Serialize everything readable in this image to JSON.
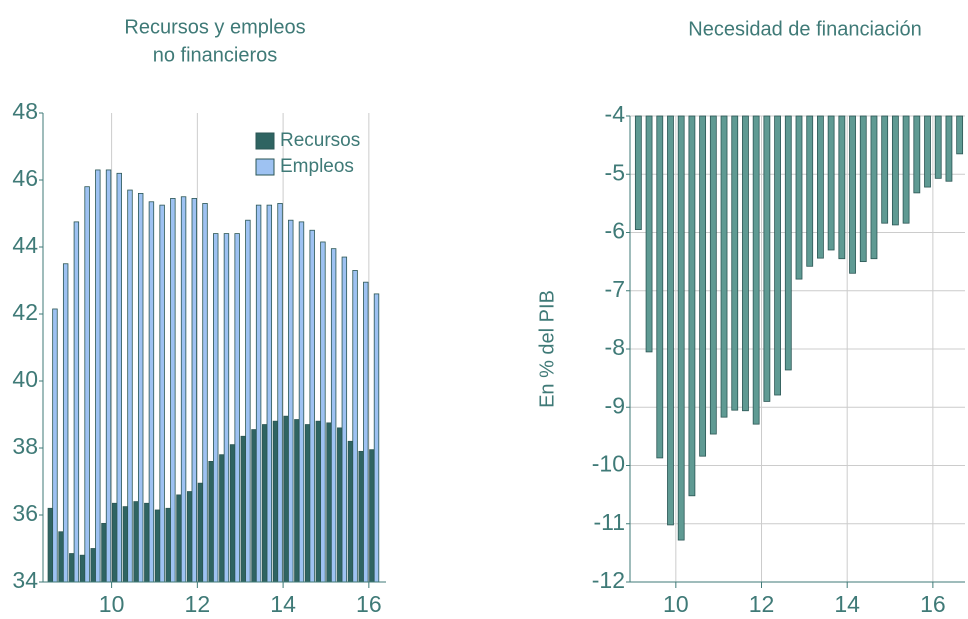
{
  "chart_data": [
    {
      "type": "bar",
      "title": [
        "Recursos y empleos",
        "no financieros"
      ],
      "x": [
        8.625,
        8.875,
        9.125,
        9.375,
        9.625,
        9.875,
        10.125,
        10.375,
        10.625,
        10.875,
        11.125,
        11.375,
        11.625,
        11.875,
        12.125,
        12.375,
        12.625,
        12.875,
        13.125,
        13.375,
        13.625,
        13.875,
        14.125,
        14.375,
        14.625,
        14.875,
        15.125,
        15.375,
        15.625,
        15.875,
        16.125
      ],
      "series": [
        {
          "name": "Recursos",
          "color": "#2f6462",
          "values": [
            36.2,
            35.5,
            34.85,
            34.8,
            35.0,
            35.75,
            36.35,
            36.25,
            36.4,
            36.35,
            36.15,
            36.2,
            36.6,
            36.7,
            36.95,
            37.6,
            37.8,
            38.1,
            38.35,
            38.55,
            38.7,
            38.8,
            38.95,
            38.85,
            38.7,
            38.8,
            38.75,
            38.6,
            38.2,
            37.9,
            37.95
          ]
        },
        {
          "name": "Empleos",
          "color": "#9ec2f2",
          "values": [
            42.15,
            43.5,
            44.75,
            45.8,
            46.3,
            46.3,
            46.2,
            45.7,
            45.6,
            45.35,
            45.25,
            45.45,
            45.5,
            45.45,
            45.3,
            44.4,
            44.4,
            44.4,
            44.8,
            45.25,
            45.25,
            45.3,
            44.8,
            44.75,
            44.5,
            44.15,
            43.95,
            43.7,
            43.3,
            42.95,
            42.6
          ]
        }
      ],
      "xlim": [
        8.4,
        16.4
      ],
      "xticks": [
        10,
        12,
        14,
        16
      ],
      "ylim": [
        34,
        48
      ],
      "yticks": [
        34,
        36,
        38,
        40,
        42,
        44,
        46,
        48
      ],
      "grid_x": true,
      "grid_y": false,
      "legend": "upper right"
    },
    {
      "type": "bar",
      "title": [
        "Necesidad de financiación"
      ],
      "ylabel": "En % del PIB",
      "x": [
        9.125,
        9.375,
        9.625,
        9.875,
        10.125,
        10.375,
        10.625,
        10.875,
        11.125,
        11.375,
        11.625,
        11.875,
        12.125,
        12.375,
        12.625,
        12.875,
        13.125,
        13.375,
        13.625,
        13.875,
        14.125,
        14.375,
        14.625,
        14.875,
        15.125,
        15.375,
        15.625,
        15.875,
        16.125,
        16.375,
        16.625
      ],
      "values": [
        -5.95,
        -8.05,
        -9.87,
        -11.02,
        -11.28,
        -10.52,
        -9.84,
        -9.46,
        -9.17,
        -9.05,
        -9.06,
        -9.29,
        -8.9,
        -8.79,
        -8.36,
        -6.8,
        -6.58,
        -6.44,
        -6.3,
        -6.45,
        -6.7,
        -6.5,
        -6.45,
        -5.84,
        -5.87,
        -5.84,
        -5.32,
        -5.22,
        -5.07,
        -5.12,
        -4.65
      ],
      "color": "#5f9a93",
      "xlim": [
        8.93,
        16.75
      ],
      "xticks": [
        10,
        12,
        14,
        16
      ],
      "ylim": [
        -12,
        -4
      ],
      "yticks": [
        -4,
        -5,
        -6,
        -7,
        -8,
        -9,
        -10,
        -11,
        -12
      ],
      "grid_x": true,
      "grid_y": true
    }
  ]
}
